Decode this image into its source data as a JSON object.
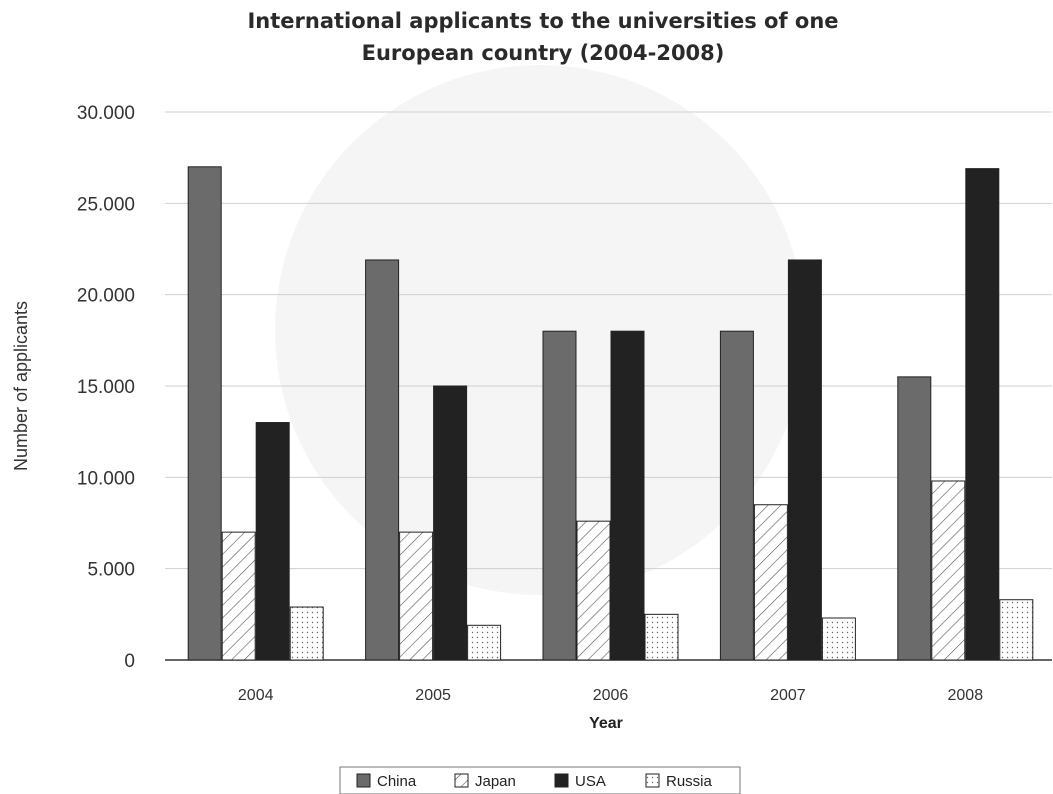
{
  "chart_data": {
    "type": "bar",
    "title": [
      "International applicants to the universities of one",
      "European country (2004-2008)"
    ],
    "xlabel": "Year",
    "ylabel": "Number of applicants",
    "categories": [
      "2004",
      "2005",
      "2006",
      "2007",
      "2008"
    ],
    "ylim": [
      0,
      30000
    ],
    "yticks": [
      0,
      5000,
      10000,
      15000,
      20000,
      25000,
      30000
    ],
    "ytick_labels": [
      "0",
      "5.000",
      "10.000",
      "15.000",
      "20.000",
      "25.000",
      "30.000"
    ],
    "grid": true,
    "legend_position": "bottom-center",
    "series": [
      {
        "name": "China",
        "values": [
          27000,
          21900,
          18000,
          18000,
          15500
        ],
        "color": "#6b6b6b",
        "pattern": "solid"
      },
      {
        "name": "Japan",
        "values": [
          7000,
          7000,
          7600,
          8500,
          9800
        ],
        "color": "#ffffff",
        "pattern": "diagonal-hatch"
      },
      {
        "name": "USA",
        "values": [
          13000,
          15000,
          18000,
          21900,
          26900
        ],
        "color": "#222222",
        "pattern": "solid"
      },
      {
        "name": "Russia",
        "values": [
          2900,
          1900,
          2500,
          2300,
          3300
        ],
        "color": "#ffffff",
        "pattern": "dots"
      }
    ]
  }
}
